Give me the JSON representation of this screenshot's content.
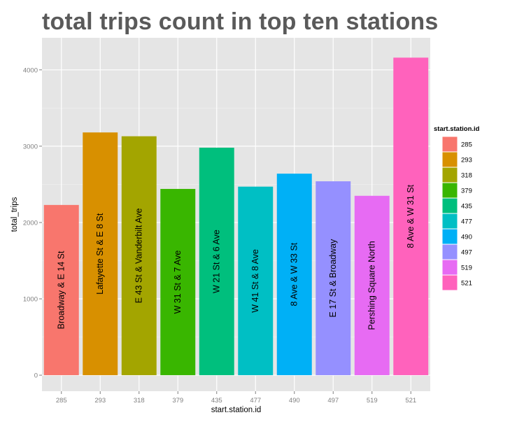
{
  "chart_data": {
    "type": "bar",
    "title": "total trips count in top ten stations",
    "xlabel": "start.station.id",
    "ylabel": "total_trips",
    "categories": [
      "285",
      "293",
      "318",
      "379",
      "435",
      "477",
      "490",
      "497",
      "519",
      "521"
    ],
    "values": [
      2230,
      3180,
      3130,
      2440,
      2980,
      2470,
      2640,
      2540,
      2350,
      4160
    ],
    "bar_labels": [
      "Broadway & E 14 St",
      "Lafayette St & E 8 St",
      "E 43 St & Vanderbilt Ave",
      "W 31 St & 7 Ave",
      "W 21 St & 6 Ave",
      "W 41 St & 8 Ave",
      "8 Ave & W 33 St",
      "E 17 St & Broadway",
      "Pershing Square North",
      "8 Ave & W 31 St"
    ],
    "colors": [
      "#F8766D",
      "#D89000",
      "#A3A500",
      "#39B600",
      "#00BF7D",
      "#00BFC4",
      "#00B0F6",
      "#9590FF",
      "#E76BF3",
      "#FF62BC"
    ],
    "y_ticks": [
      0,
      1000,
      2000,
      3000,
      4000
    ],
    "ylim": [
      -210,
      4420
    ],
    "grid": true,
    "legend": {
      "title": "start.station.id",
      "position": "right",
      "labels": [
        "285",
        "293",
        "318",
        "379",
        "435",
        "477",
        "490",
        "497",
        "519",
        "521"
      ]
    }
  }
}
